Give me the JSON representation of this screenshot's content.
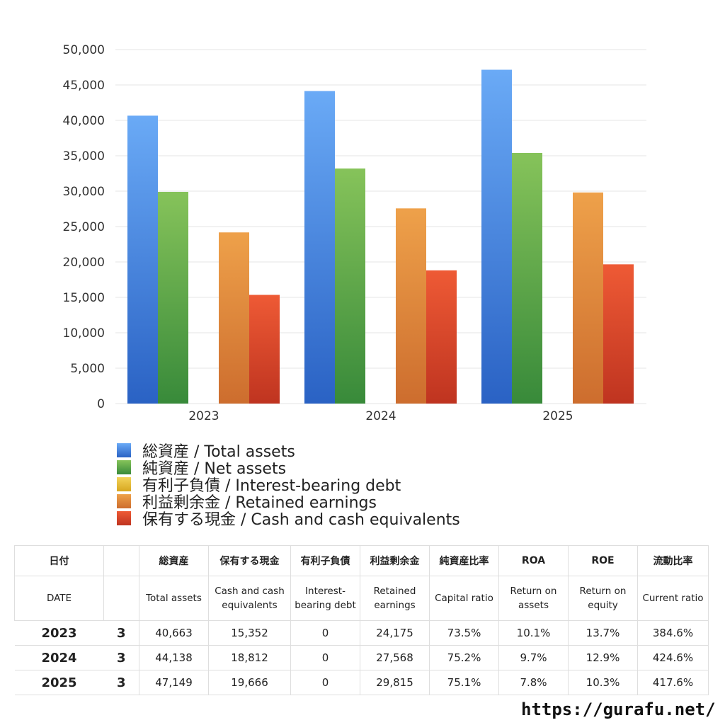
{
  "chart_data": {
    "type": "bar",
    "categories": [
      "2023",
      "2024",
      "2025"
    ],
    "series": [
      {
        "name": "総資産 / Total assets",
        "values": [
          40663,
          44138,
          47149
        ],
        "color_top": "#6aaaf6",
        "color_bottom": "#2a62c4"
      },
      {
        "name": "純資産 / Net assets",
        "values": [
          29900,
          33200,
          35400
        ],
        "color_top": "#86c35a",
        "color_bottom": "#388a3a"
      },
      {
        "name": "有利子負債 / Interest-bearing debt",
        "values": [
          0,
          0,
          0
        ],
        "color_top": "#f3d35a",
        "color_bottom": "#d7a720"
      },
      {
        "name": "利益剰余金 / Retained earnings",
        "values": [
          24175,
          27568,
          29815
        ],
        "color_top": "#eea14a",
        "color_bottom": "#cd6d2e"
      },
      {
        "name": "保有する現金 /  Cash and cash equivalents",
        "values": [
          15352,
          18812,
          19666
        ],
        "color_top": "#ee5a35",
        "color_bottom": "#bf3420"
      }
    ],
    "ylim": [
      0,
      50000
    ],
    "yticks": [
      "0",
      "5,000",
      "10,000",
      "15,000",
      "20,000",
      "25,000",
      "30,000",
      "35,000",
      "40,000",
      "45,000",
      "50,000"
    ],
    "grid": true,
    "legend_position": "bottom-left"
  },
  "table": {
    "header_jp": [
      "日付",
      "",
      "総資産",
      "保有する現金",
      "有利子負債",
      "利益剰余金",
      "純資産比率",
      "ROA",
      "ROE",
      "流動比率"
    ],
    "header_en": [
      "DATE",
      "",
      "Total assets",
      "Cash and cash equivalents",
      "Interest-bearing debt",
      "Retained earnings",
      "Capital ratio",
      "Return on assets",
      "Return on equity",
      "Current ratio"
    ],
    "rows": [
      {
        "year": "2023",
        "month": "3",
        "total_assets": "40,663",
        "cash": "15,352",
        "debt": "0",
        "retained": "24,175",
        "capital_ratio": "73.5%",
        "roa": "10.1%",
        "roe": "13.7%",
        "current_ratio": "384.6%"
      },
      {
        "year": "2024",
        "month": "3",
        "total_assets": "44,138",
        "cash": "18,812",
        "debt": "0",
        "retained": "27,568",
        "capital_ratio": "75.2%",
        "roa": "9.7%",
        "roe": "12.9%",
        "current_ratio": "424.6%"
      },
      {
        "year": "2025",
        "month": "3",
        "total_assets": "47,149",
        "cash": "19,666",
        "debt": "0",
        "retained": "29,815",
        "capital_ratio": "75.1%",
        "roa": "7.8%",
        "roe": "10.3%",
        "current_ratio": "417.6%"
      }
    ]
  },
  "footer": {
    "url": "https://gurafu.net/"
  }
}
